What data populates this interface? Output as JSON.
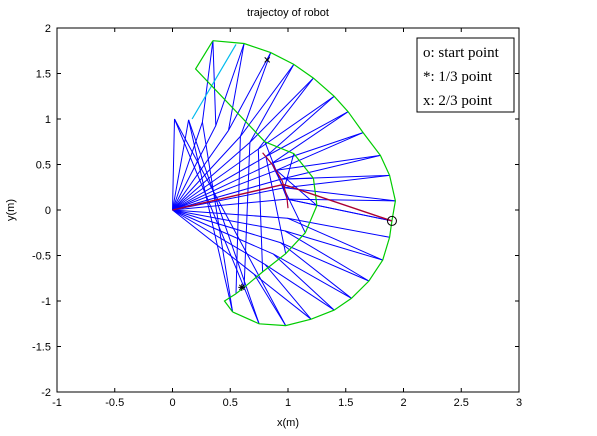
{
  "chart_data": {
    "type": "line",
    "title": "trajectoy of robot",
    "xlabel": "x(m)",
    "ylabel": "y(m)",
    "xlim": [
      -1,
      3
    ],
    "ylim": [
      -2,
      2
    ],
    "xticks": [
      "-1",
      "-0.5",
      "0",
      "0.5",
      "1",
      "1.5",
      "2",
      "2.5",
      "3"
    ],
    "yticks": [
      "-2",
      "-1.5",
      "-1",
      "-0.5",
      "0",
      "0.5",
      "1",
      "1.5",
      "2"
    ],
    "grid": false,
    "legend_placement": "top-right",
    "legend": [
      "o: start point",
      "*: 1/3 point",
      "x: 2/3 point"
    ],
    "base": [
      0,
      0
    ],
    "link1_length": 1.0,
    "link2_length": 1.0,
    "elbow_points": [
      [
        0.993,
        0.12
      ],
      [
        0.97,
        0.245
      ],
      [
        0.941,
        0.34
      ],
      [
        0.9,
        0.436
      ],
      [
        0.859,
        0.512
      ],
      [
        0.809,
        0.588
      ],
      [
        0.743,
        0.669
      ],
      [
        0.67,
        0.743
      ],
      [
        0.588,
        0.809
      ],
      [
        0.485,
        0.875
      ],
      [
        0.375,
        0.927
      ],
      [
        0.259,
        0.966
      ],
      [
        0.139,
        0.99
      ],
      [
        0.017,
        1.0
      ],
      [
        0.707,
        -0.707
      ],
      [
        0.801,
        -0.598
      ],
      [
        0.874,
        -0.485
      ],
      [
        0.934,
        -0.358
      ],
      [
        0.973,
        -0.23
      ],
      [
        0.996,
        -0.09
      ]
    ],
    "trajectory": [
      [
        1.9,
        -0.12
      ],
      [
        1.93,
        0.1
      ],
      [
        1.88,
        0.38
      ],
      [
        1.8,
        0.6
      ],
      [
        1.65,
        0.85
      ],
      [
        1.52,
        1.08
      ],
      [
        1.4,
        1.25
      ],
      [
        1.22,
        1.45
      ],
      [
        1.05,
        1.6
      ],
      [
        0.85,
        1.73
      ],
      [
        0.62,
        1.83
      ],
      [
        0.35,
        1.86
      ],
      [
        0.52,
        -1.12
      ],
      [
        0.75,
        -1.25
      ],
      [
        0.98,
        -1.27
      ],
      [
        1.2,
        -1.2
      ],
      [
        1.4,
        -1.1
      ],
      [
        1.55,
        -0.97
      ],
      [
        1.7,
        -0.78
      ],
      [
        1.82,
        -0.55
      ],
      [
        1.88,
        -0.3
      ]
    ],
    "elbow_curve": [
      [
        1.0,
        0.02
      ],
      [
        0.99,
        0.15
      ],
      [
        0.95,
        0.32
      ],
      [
        0.87,
        0.49
      ],
      [
        0.78,
        0.63
      ]
    ],
    "inner_boundary": [
      [
        0.8,
        0.75
      ],
      [
        1.05,
        0.62
      ],
      [
        1.22,
        0.35
      ],
      [
        1.25,
        0.05
      ],
      [
        1.15,
        -0.25
      ],
      [
        0.98,
        -0.48
      ],
      [
        0.78,
        -0.68
      ],
      [
        0.62,
        -0.85
      ],
      [
        0.55,
        -0.92
      ]
    ],
    "highlight_arm": [
      [
        0,
        0
      ],
      [
        0.96,
        0.28
      ],
      [
        1.9,
        -0.12
      ]
    ],
    "start_point": [
      1.9,
      -0.12
    ],
    "third_point": [
      0.6,
      -0.85
    ],
    "two_third_point": [
      0.82,
      1.65
    ],
    "colors": {
      "links": "#0000ff",
      "trajectory": "#00cc00",
      "highlight": "#aa0033",
      "upper_cyan": "#00bbee",
      "markers": "#000000"
    }
  }
}
